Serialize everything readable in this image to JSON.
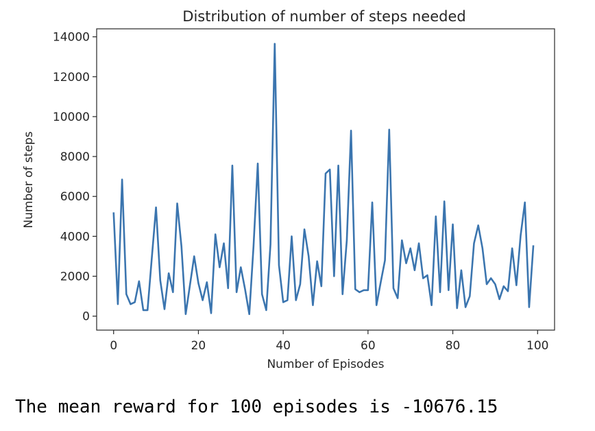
{
  "chart_data": {
    "type": "line",
    "title": "Distribution of number of steps needed",
    "xlabel": "Number of Episodes",
    "ylabel": "Number of steps",
    "xlim": [
      -4,
      104
    ],
    "ylim": [
      -700,
      14400
    ],
    "xticks": [
      0,
      20,
      40,
      60,
      80,
      100
    ],
    "yticks": [
      0,
      2000,
      4000,
      6000,
      8000,
      10000,
      12000,
      14000
    ],
    "grid": false,
    "legend": false,
    "line_color": "#3b75af",
    "x": [
      0,
      1,
      2,
      3,
      4,
      5,
      6,
      7,
      8,
      9,
      10,
      11,
      12,
      13,
      14,
      15,
      16,
      17,
      18,
      19,
      20,
      21,
      22,
      23,
      24,
      25,
      26,
      27,
      28,
      29,
      30,
      31,
      32,
      33,
      34,
      35,
      36,
      37,
      38,
      39,
      40,
      41,
      42,
      43,
      44,
      45,
      46,
      47,
      48,
      49,
      50,
      51,
      52,
      53,
      54,
      55,
      56,
      57,
      58,
      59,
      60,
      61,
      62,
      63,
      64,
      65,
      66,
      67,
      68,
      69,
      70,
      71,
      72,
      73,
      74,
      75,
      76,
      77,
      78,
      79,
      80,
      81,
      82,
      83,
      84,
      85,
      86,
      87,
      88,
      89,
      90,
      91,
      92,
      93,
      94,
      95,
      96,
      97,
      98,
      99
    ],
    "y": [
      5200,
      600,
      6850,
      1100,
      600,
      700,
      1750,
      300,
      300,
      2900,
      5450,
      1800,
      350,
      2150,
      1200,
      5650,
      3500,
      100,
      1550,
      3000,
      1650,
      800,
      1700,
      150,
      4100,
      2450,
      3650,
      1400,
      7550,
      1200,
      2450,
      1350,
      100,
      3500,
      7650,
      1100,
      300,
      3600,
      13650,
      2550,
      700,
      800,
      4000,
      800,
      1600,
      4350,
      3000,
      550,
      2750,
      1500,
      7150,
      7350,
      2000,
      7550,
      1100,
      3800,
      9300,
      1350,
      1200,
      1300,
      1300,
      5700,
      550,
      1700,
      2800,
      9350,
      1400,
      900,
      3800,
      2650,
      3400,
      2300,
      3650,
      1900,
      2050,
      550,
      5000,
      1200,
      5750,
      1300,
      4600,
      400,
      2300,
      450,
      1000,
      3650,
      4550,
      3400,
      1600,
      1900,
      1600,
      850,
      1500,
      1250,
      3400,
      1550,
      4050,
      5700,
      450,
      3550
    ]
  },
  "output_text": "The mean reward for 100 episodes is -10676.15"
}
